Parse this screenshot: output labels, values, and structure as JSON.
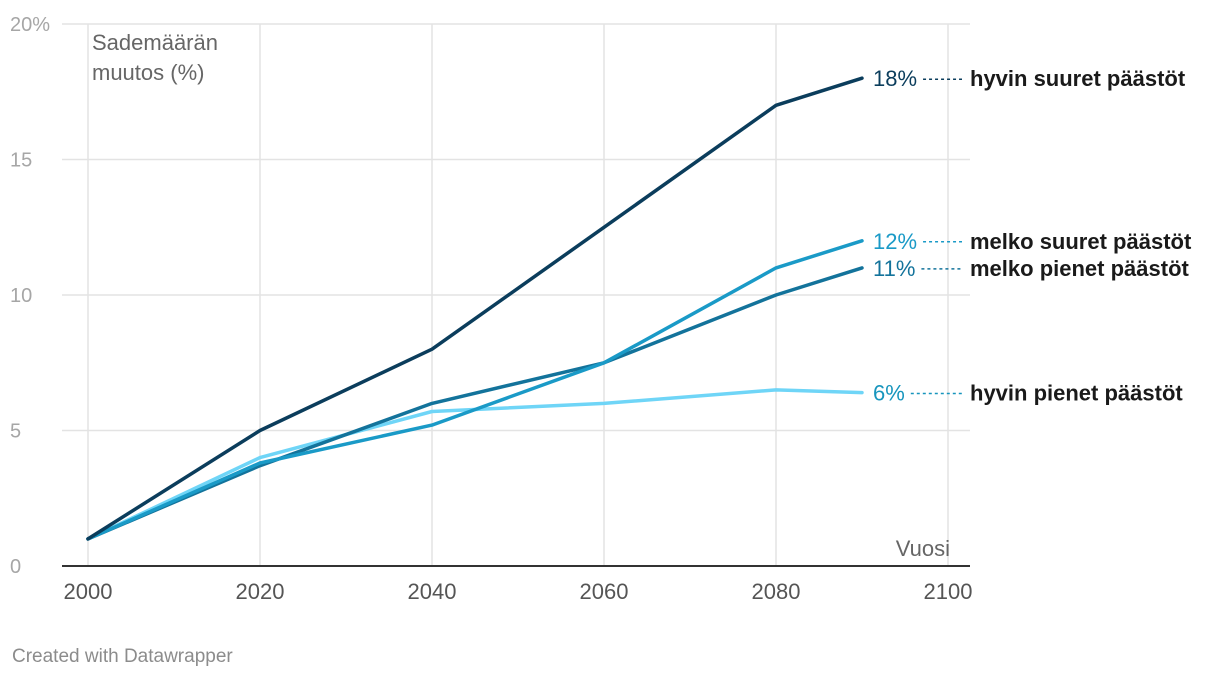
{
  "chart_data": {
    "type": "line",
    "ylabel_lines": [
      "Sademäärän",
      "muutos (%)"
    ],
    "xlabel": "Vuosi",
    "x_ticks": [
      2000,
      2020,
      2040,
      2060,
      2080,
      2100
    ],
    "x_tick_labels": [
      "2000",
      "2020",
      "2040",
      "2060",
      "2080",
      "2100"
    ],
    "y_ticks": [
      0,
      5,
      10,
      15,
      20
    ],
    "y_tick_labels": [
      "0",
      "5",
      "10",
      "15",
      "20%"
    ],
    "xlim": [
      2000,
      2100
    ],
    "ylim": [
      0,
      20
    ],
    "x": [
      2000,
      2020,
      2040,
      2060,
      2080,
      2090
    ],
    "series": [
      {
        "name": "hyvin suuret päästöt",
        "end_label": "18%",
        "color": "#0b3d5c",
        "values": [
          1,
          5,
          8,
          12.5,
          17,
          18
        ]
      },
      {
        "name": "melko suuret päästöt",
        "end_label": "12%",
        "color": "#1a9ac7",
        "values": [
          1,
          3.8,
          5.2,
          7.5,
          11,
          12
        ]
      },
      {
        "name": "melko pienet päästöt",
        "end_label": "11%",
        "color": "#13739b",
        "values": [
          1,
          3.7,
          6,
          7.5,
          10,
          11
        ]
      },
      {
        "name": "hyvin pienet päästöt",
        "end_label": "6%",
        "color": "#6fd5f7",
        "label_color": "#1795bd",
        "values": [
          1,
          4,
          5.7,
          6,
          6.5,
          6.4
        ]
      }
    ]
  },
  "footer": {
    "credit": "Created with Datawrapper"
  }
}
